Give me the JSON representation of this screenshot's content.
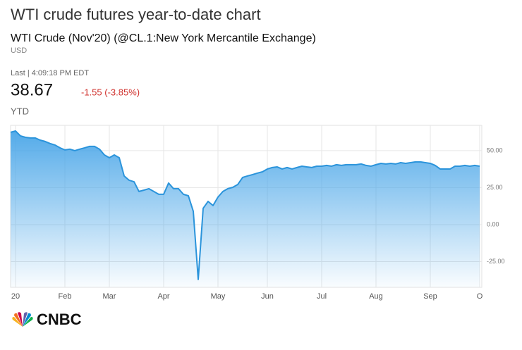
{
  "chart_data": {
    "type": "area",
    "title": "WTI crude futures year-to-date chart",
    "subtitle": "WTI Crude (Nov'20) (@CL.1:New York Mercantile Exchange)",
    "currency": "USD",
    "last_label": "Last | 4:09:18 PM EDT",
    "last_price": 38.67,
    "change": "-1.55 (-3.85%)",
    "range": "YTD",
    "source": "CNBC",
    "color": "#2b94db",
    "grid": true,
    "categories": [
      null,
      "20",
      null,
      null,
      null,
      null,
      null,
      null,
      null,
      null,
      null,
      "Feb",
      null,
      null,
      null,
      null,
      null,
      null,
      null,
      null,
      "Mar",
      null,
      null,
      null,
      null,
      null,
      null,
      null,
      null,
      null,
      null,
      "Apr",
      null,
      null,
      null,
      null,
      null,
      null,
      null,
      null,
      null,
      null,
      "May",
      null,
      null,
      null,
      null,
      null,
      null,
      null,
      null,
      null,
      "Jun",
      null,
      null,
      null,
      null,
      null,
      null,
      null,
      null,
      null,
      null,
      "Jul",
      null,
      null,
      null,
      null,
      null,
      null,
      null,
      null,
      null,
      null,
      "Aug",
      null,
      null,
      null,
      null,
      null,
      null,
      null,
      null,
      null,
      null,
      "Sep",
      null,
      null,
      null,
      null,
      null,
      null,
      null,
      null,
      null,
      "O"
    ],
    "values": [
      62.4,
      63.3,
      60,
      59,
      58.6,
      58.6,
      57.1,
      56.2,
      54.8,
      53.8,
      51.9,
      50.5,
      51,
      50,
      51,
      51.9,
      52.9,
      52.9,
      51,
      47.1,
      45.2,
      47.1,
      45.2,
      32.9,
      30,
      29,
      22.4,
      23.3,
      24.3,
      22.4,
      20.5,
      20.5,
      28.1,
      24.3,
      24.3,
      20.5,
      19.5,
      9,
      -37.1,
      11,
      15.7,
      12.9,
      18.6,
      22.4,
      24.3,
      25.2,
      27.1,
      31.9,
      32.9,
      33.8,
      34.8,
      35.7,
      37.6,
      38.6,
      39,
      37.6,
      38.6,
      37.6,
      38.6,
      39.5,
      39,
      38.6,
      39.5,
      39.5,
      40,
      39.5,
      40.5,
      40,
      40.5,
      40.5,
      40.5,
      41,
      40,
      39.5,
      40.5,
      41.4,
      41,
      41.4,
      41,
      41.9,
      41.4,
      41.9,
      42.4,
      42.4,
      41.9,
      41.4,
      40,
      37.6,
      37.6,
      37.6,
      39.5,
      39.5,
      40,
      39.5,
      40,
      39.5
    ],
    "ylim": [
      -42.4,
      67.1
    ],
    "yticks": [
      {
        "value": 50,
        "label": "50.00"
      },
      {
        "value": 25,
        "label": "25.00"
      },
      {
        "value": 0,
        "label": "0.00"
      },
      {
        "value": -25,
        "label": "-25.00"
      }
    ]
  }
}
